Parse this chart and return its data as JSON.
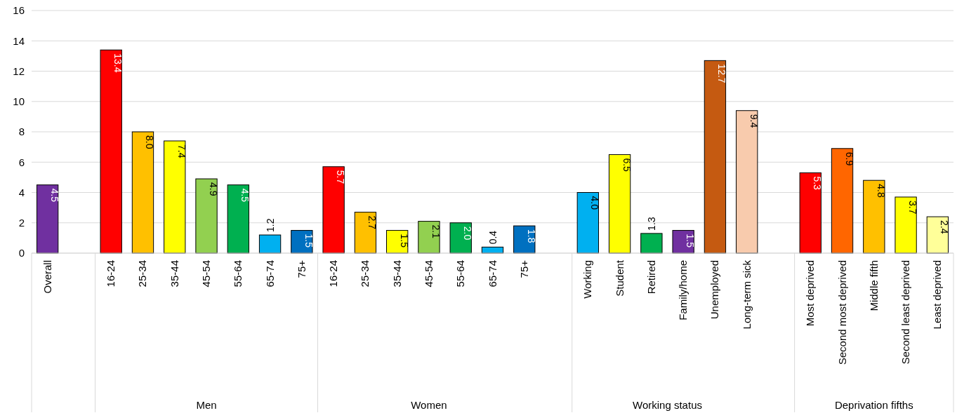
{
  "chart_data": {
    "type": "bar",
    "categories": [
      "Overall",
      null,
      "16-24",
      "25-34",
      "35-44",
      "45-54",
      "55-64",
      "65-74",
      "75+",
      "16-24",
      "25-34",
      "35-44",
      "45-54",
      "55-64",
      "65-74",
      "75+",
      null,
      "Working",
      "Student",
      "Retired",
      "Family/home",
      "Unemployed",
      "Long-term sick",
      null,
      "Most deprived",
      "Second most deprived",
      "Middle fifth",
      "Second least deprived",
      "Least deprived"
    ],
    "values": [
      4.5,
      null,
      13.4,
      8.0,
      7.4,
      4.9,
      4.5,
      1.2,
      1.5,
      5.7,
      2.7,
      1.5,
      2.1,
      2.0,
      0.4,
      1.8,
      null,
      4.0,
      6.5,
      1.3,
      1.5,
      12.7,
      9.4,
      null,
      5.3,
      6.9,
      4.8,
      3.7,
      2.4
    ],
    "value_labels": [
      "4.5",
      null,
      "13.4",
      "8.0",
      "7.4",
      "4.9",
      "4.5",
      "1.2",
      "1.5",
      "5.7",
      "2.7",
      "1.5",
      "2.1",
      "2.0",
      "0.4",
      "1.8",
      null,
      "4.0",
      "6.5",
      "1.3",
      "1.5",
      "12.7",
      "9.4",
      null,
      "5.3",
      "6.9",
      "4.8",
      "3.7",
      "2.4"
    ],
    "colors": [
      "#7030a0",
      null,
      "#ff0000",
      "#ffc000",
      "#ffff00",
      "#92d050",
      "#00b050",
      "#00b0f0",
      "#0070c0",
      "#ff0000",
      "#ffc000",
      "#ffff00",
      "#92d050",
      "#00b050",
      "#00b0f0",
      "#0070c0",
      null,
      "#00b0f0",
      "#ffff00",
      "#00b050",
      "#7030a0",
      "#c55a11",
      "#f8cbad",
      null,
      "#ff0000",
      "#ff6600",
      "#ffc000",
      "#ffff00",
      "#ffff99"
    ],
    "annotations": [
      "Men",
      "Women",
      "Working status",
      "Deprivation fifths"
    ],
    "ylim": [
      0,
      16
    ],
    "yticks": [
      0,
      2,
      4,
      6,
      8,
      10,
      12,
      14,
      16
    ],
    "grid": "y"
  }
}
